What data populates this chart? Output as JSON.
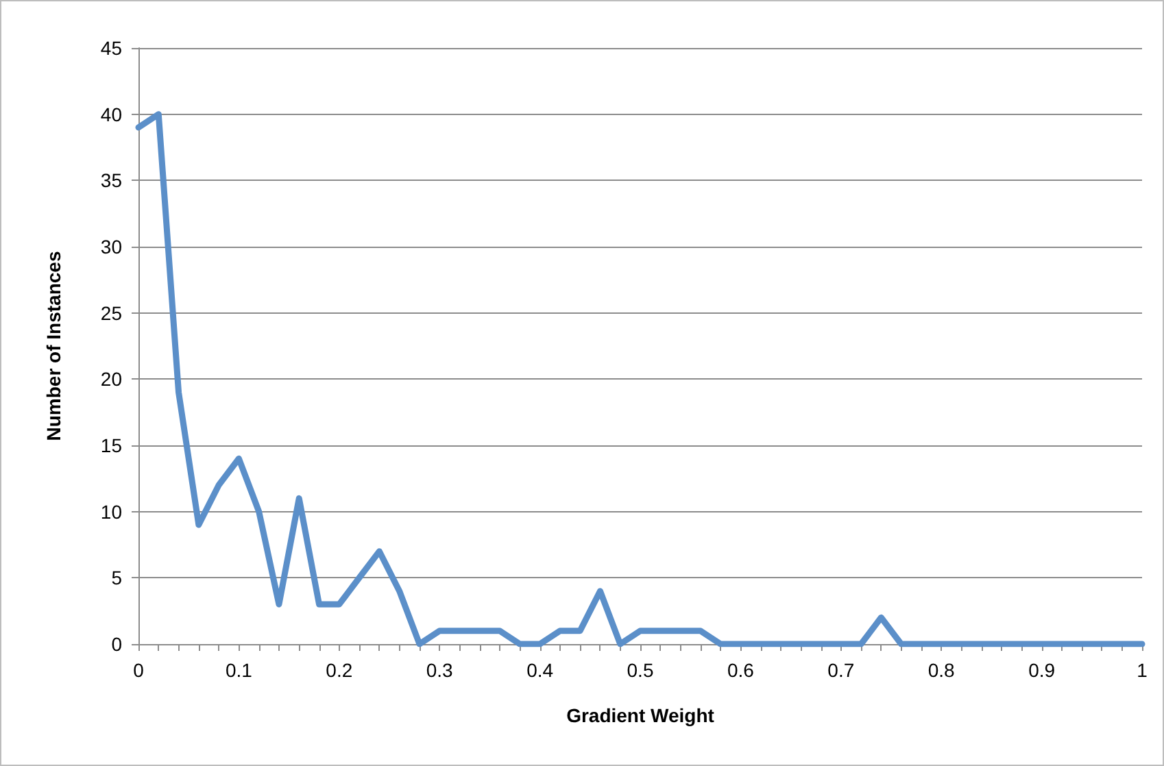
{
  "chart_data": {
    "type": "line",
    "xlabel": "Gradient Weight",
    "ylabel": "Number of Instances",
    "categories": [
      "0",
      null,
      null,
      null,
      null,
      "0.1",
      null,
      null,
      null,
      null,
      "0.2",
      null,
      null,
      null,
      null,
      "0.3",
      null,
      null,
      null,
      null,
      "0.4",
      null,
      null,
      null,
      null,
      "0.5",
      null,
      null,
      null,
      null,
      "0.6",
      null,
      null,
      null,
      null,
      "0.7",
      null,
      null,
      null,
      null,
      "0.8",
      null,
      null,
      null,
      null,
      "0.9",
      null,
      null,
      null,
      null,
      "1"
    ],
    "series": [
      {
        "color": "#5b8fc9",
        "values": [
          39,
          40,
          19,
          9,
          12,
          14,
          10,
          3,
          11,
          3,
          3,
          5,
          7,
          4,
          0,
          1,
          1,
          1,
          1,
          0,
          0,
          1,
          1,
          4,
          0,
          1,
          1,
          1,
          1,
          0,
          0,
          0,
          0,
          0,
          0,
          0,
          0,
          2,
          0,
          0,
          0,
          0,
          0,
          0,
          0,
          0,
          0,
          0,
          0,
          0,
          0
        ]
      }
    ],
    "ylim": [
      0,
      45
    ],
    "yticks": [
      0,
      5,
      10,
      15,
      20,
      25,
      30,
      35,
      40,
      45
    ],
    "grid": "y",
    "marker": "none",
    "line_style": "solid"
  }
}
